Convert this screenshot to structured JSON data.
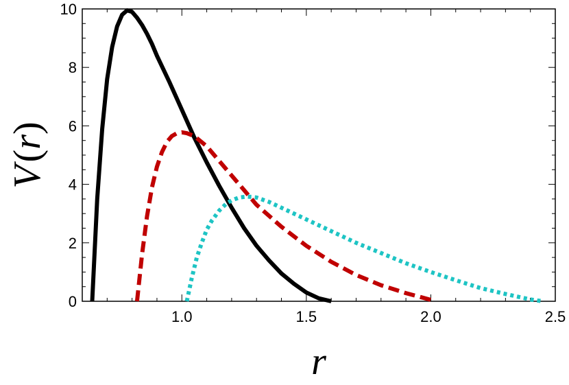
{
  "chart_data": {
    "type": "line",
    "title": "",
    "xlabel": "r",
    "ylabel": "V(r)",
    "ylabel_parts": [
      "V",
      "(",
      "r",
      ")"
    ],
    "xlim": [
      0.6,
      2.5
    ],
    "ylim": [
      0,
      10
    ],
    "x_ticks": [
      1.0,
      1.5,
      2.0,
      2.5
    ],
    "x_tick_labels": [
      "1.0",
      "1.5",
      "2.0",
      "2.5"
    ],
    "y_ticks": [
      0,
      2,
      4,
      6,
      8,
      10
    ],
    "y_tick_labels": [
      "0",
      "2",
      "4",
      "6",
      "8",
      "10"
    ],
    "grid": false,
    "legend": "none",
    "series": [
      {
        "style": "solid",
        "color": "#000000",
        "x": [
          0.64,
          0.66,
          0.68,
          0.7,
          0.72,
          0.74,
          0.76,
          0.78,
          0.8,
          0.82,
          0.84,
          0.86,
          0.88,
          0.9,
          0.95,
          1.0,
          1.05,
          1.1,
          1.15,
          1.2,
          1.25,
          1.3,
          1.35,
          1.4,
          1.45,
          1.5,
          1.55,
          1.6
        ],
        "y": [
          0.0,
          3.5,
          5.9,
          7.6,
          8.7,
          9.4,
          9.8,
          9.95,
          9.9,
          9.7,
          9.45,
          9.15,
          8.8,
          8.4,
          7.5,
          6.55,
          5.6,
          4.75,
          3.95,
          3.2,
          2.5,
          1.9,
          1.4,
          0.95,
          0.6,
          0.3,
          0.1,
          0.0
        ]
      },
      {
        "style": "dashed",
        "color": "#c00000",
        "x": [
          0.82,
          0.84,
          0.86,
          0.88,
          0.9,
          0.92,
          0.94,
          0.96,
          0.98,
          1.0,
          1.02,
          1.05,
          1.1,
          1.15,
          1.2,
          1.25,
          1.3,
          1.4,
          1.5,
          1.6,
          1.7,
          1.8,
          1.9,
          2.0,
          2.02
        ],
        "y": [
          0.0,
          1.6,
          2.9,
          3.9,
          4.6,
          5.1,
          5.45,
          5.65,
          5.75,
          5.78,
          5.75,
          5.65,
          5.3,
          4.8,
          4.3,
          3.8,
          3.3,
          2.55,
          1.9,
          1.35,
          0.9,
          0.55,
          0.28,
          0.05,
          0.0
        ]
      },
      {
        "style": "dotted",
        "color": "#1ec4c4",
        "x": [
          1.02,
          1.04,
          1.06,
          1.08,
          1.1,
          1.12,
          1.15,
          1.18,
          1.2,
          1.23,
          1.26,
          1.28,
          1.3,
          1.35,
          1.4,
          1.5,
          1.6,
          1.7,
          1.8,
          1.9,
          2.0,
          2.1,
          2.2,
          2.3,
          2.4,
          2.45
        ],
        "y": [
          0.0,
          0.8,
          1.5,
          2.0,
          2.45,
          2.75,
          3.1,
          3.35,
          3.45,
          3.55,
          3.58,
          3.57,
          3.55,
          3.4,
          3.2,
          2.8,
          2.4,
          2.0,
          1.65,
          1.3,
          1.0,
          0.72,
          0.45,
          0.25,
          0.06,
          0.0
        ]
      }
    ]
  }
}
